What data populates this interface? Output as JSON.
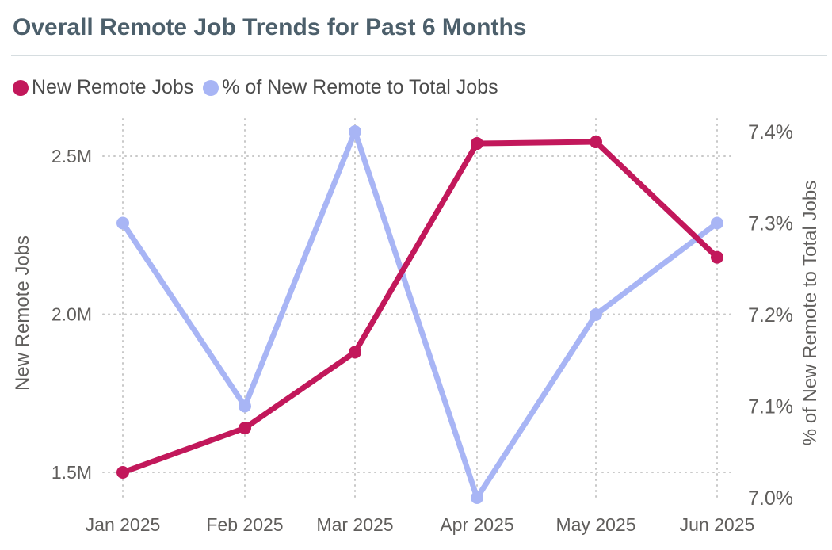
{
  "title": "Overall Remote Job Trends for Past 6 Months",
  "chart_data": {
    "type": "line",
    "title": "Overall Remote Job Trends for Past 6 Months",
    "categories": [
      "Jan 2025",
      "Feb 2025",
      "Mar 2025",
      "Apr 2025",
      "May 2025",
      "Jun 2025"
    ],
    "series": [
      {
        "name": "New Remote Jobs",
        "axis": "left",
        "color": "#c2185b",
        "values": [
          1500000,
          1640000,
          1880000,
          2540000,
          2545000,
          2180000
        ]
      },
      {
        "name": "% of New Remote to Total Jobs",
        "axis": "right",
        "color": "#a8b5f5",
        "values": [
          7.3,
          7.1,
          7.4,
          7.0,
          7.2,
          7.3
        ]
      }
    ],
    "y_left": {
      "label": "New Remote Jobs",
      "ticks": [
        {
          "value": 1500000,
          "label": "1.5M"
        },
        {
          "value": 2000000,
          "label": "2.0M"
        },
        {
          "value": 2500000,
          "label": "2.5M"
        }
      ]
    },
    "y_right": {
      "label": "% of New Remote to Total Jobs",
      "ticks": [
        {
          "value": 7.0,
          "label": "7.0%"
        },
        {
          "value": 7.1,
          "label": "7.1%"
        },
        {
          "value": 7.2,
          "label": "7.2%"
        },
        {
          "value": 7.3,
          "label": "7.3%"
        },
        {
          "value": 7.4,
          "label": "7.4%"
        }
      ]
    },
    "grid": true,
    "legend_position": "top-left"
  }
}
